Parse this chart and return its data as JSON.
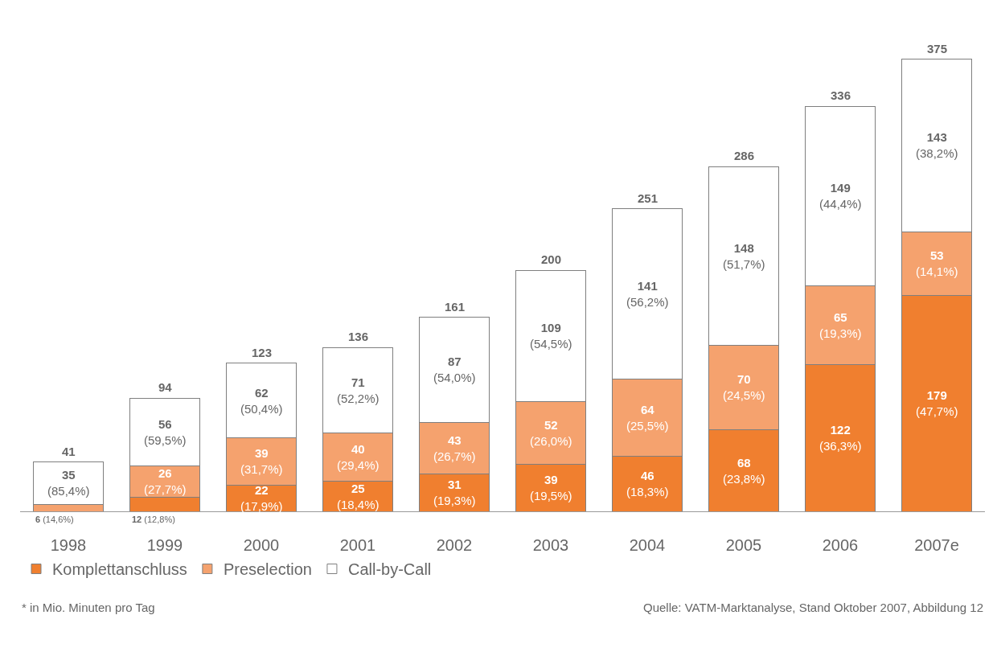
{
  "chart_data": {
    "type": "bar",
    "stacked": true,
    "categories": [
      "1998",
      "1999",
      "2000",
      "2001",
      "2002",
      "2003",
      "2004",
      "2005",
      "2006",
      "2007e"
    ],
    "series": [
      {
        "name": "Komplettanschluss",
        "color": "#f07f2f",
        "values": [
          null,
          12,
          22,
          25,
          31,
          39,
          46,
          68,
          122,
          179
        ],
        "value_labels": [
          null,
          "12 (12,8%)",
          "22 (17,9%)",
          "25 (18,4%)",
          "31 (19,3%)",
          "39 (19,5%)",
          "46 (18,3%)",
          "68 (23,8%)",
          "122 (36,3%)",
          "179 (47,7%)"
        ]
      },
      {
        "name": "Preselection",
        "color": "#f5a26e",
        "values": [
          6,
          26,
          39,
          40,
          43,
          52,
          64,
          70,
          65,
          53
        ],
        "value_labels": [
          "6 (14,6%)",
          "26 (27,7%)",
          "39 (31,7%)",
          "40 (29,4%)",
          "43 (26,7%)",
          "52 (26,0%)",
          "64 (25,5%)",
          "70 (24,5%)",
          "65 (19,3%)",
          "53 (14,1%)"
        ]
      },
      {
        "name": "Call-by-Call",
        "color": "#ffffff",
        "values": [
          35,
          56,
          62,
          71,
          87,
          109,
          141,
          148,
          149,
          143
        ],
        "value_labels": [
          "35 (85,4%)",
          "56 (59,5%)",
          "62 (50,4%)",
          "71 (52,2%)",
          "87 (54,0%)",
          "109 (54,5%)",
          "141 (56,2%)",
          "148 (51,7%)",
          "149 (44,4%)",
          "143 (38,2%)"
        ]
      }
    ],
    "totals": [
      "41",
      "94",
      "123",
      "136",
      "161",
      "200",
      "251",
      "286",
      "336",
      "375"
    ],
    "legend": "bottom",
    "annotations": [
      "* in Mio. Minuten pro Tag",
      "Quelle: VATM-Marktanalyse, Stand Oktober 2007, Abbildung 12"
    ]
  }
}
